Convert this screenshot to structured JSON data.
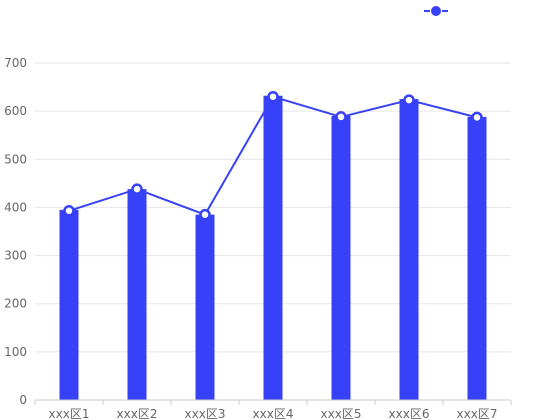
{
  "chart_data": {
    "type": "bar",
    "categories": [
      "xxx区1",
      "xxx区2",
      "xxx区3",
      "xxx区4",
      "xxx区5",
      "xxx区6",
      "xxx区7"
    ],
    "series": [
      {
        "kind": "bar",
        "values": [
          395,
          438,
          385,
          632,
          590,
          625,
          588
        ],
        "color": "#3641f8"
      },
      {
        "kind": "line",
        "values": [
          393,
          438,
          385,
          630,
          588,
          623,
          587
        ],
        "color": "#3641f8",
        "marker_fill": "#ffffff"
      }
    ],
    "legend": {
      "label": "",
      "position": "top-right"
    },
    "ylim": [
      0,
      700
    ],
    "yticks": [
      0,
      100,
      200,
      300,
      400,
      500,
      600,
      700
    ],
    "grid": true,
    "colors": {
      "grid": "#e6e6e6",
      "axis": "#cccccc",
      "text": "#666666",
      "accent": "#3641f8"
    }
  }
}
